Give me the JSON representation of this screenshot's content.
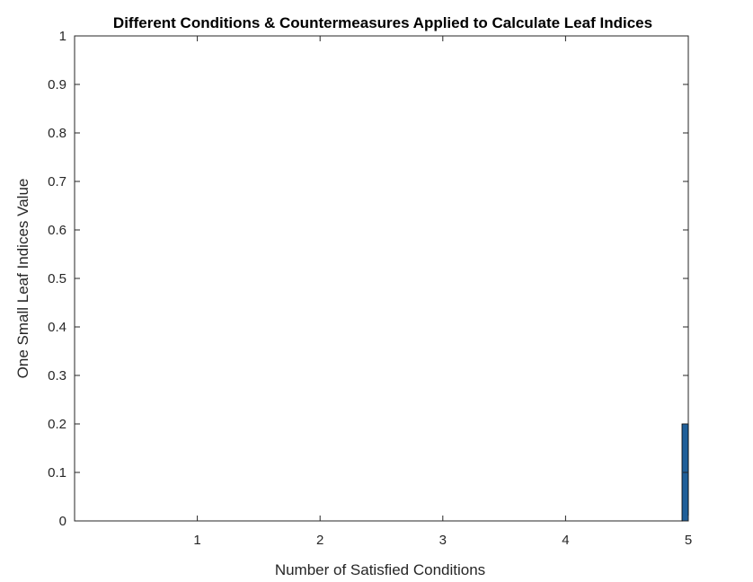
{
  "chart_data": {
    "type": "bar",
    "title": "Different Conditions & Countermeasures Applied to Calculate Leaf Indices",
    "xlabel": "Number of Satisfied Conditions",
    "ylabel": "One Small Leaf Indices Value",
    "xlim": [
      0,
      5
    ],
    "ylim": [
      0,
      1
    ],
    "xticks": [
      "1",
      "2",
      "3",
      "4",
      "5"
    ],
    "yticks": [
      "0",
      "0.1",
      "0.2",
      "0.3",
      "0.4",
      "0.5",
      "0.6",
      "0.7",
      "0.8",
      "0.9",
      "1"
    ],
    "grid": false,
    "bar_color": "#1f5f99",
    "bars": [
      {
        "x": 5,
        "value": 0.2
      }
    ]
  }
}
